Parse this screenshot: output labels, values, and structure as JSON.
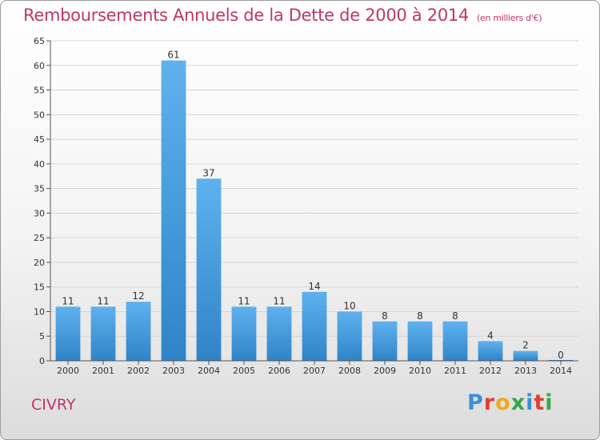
{
  "title": "Remboursements Annuels de la Dette de 2000 à 2014",
  "subtitle": "(en milliers d'€)",
  "town": "CIVRY",
  "logo": {
    "text": "Proxiti",
    "letters": [
      {
        "ch": "P",
        "color": "#3a8fd8"
      },
      {
        "ch": "r",
        "color": "#e0402f"
      },
      {
        "ch": "o",
        "color": "#f2a81d"
      },
      {
        "ch": "x",
        "color": "#3aa648"
      },
      {
        "ch": "i",
        "color": "#3a8fd8"
      },
      {
        "ch": "t",
        "color": "#e0402f"
      },
      {
        "ch": "i",
        "color": "#3aa648"
      }
    ]
  },
  "colors": {
    "bar_light": "#5fb1ee",
    "bar_dark": "#2f84c8",
    "accent": "#c0356c",
    "grid": "#d6d6d6"
  },
  "chart_data": {
    "type": "bar",
    "categories": [
      "2000",
      "2001",
      "2002",
      "2003",
      "2004",
      "2005",
      "2006",
      "2007",
      "2008",
      "2009",
      "2010",
      "2011",
      "2012",
      "2013",
      "2014"
    ],
    "values": [
      11,
      11,
      12,
      61,
      37,
      11,
      11,
      14,
      10,
      8,
      8,
      8,
      4,
      2,
      0
    ],
    "data_labels": [
      "11",
      "11",
      "12",
      "61",
      "37",
      "11",
      "11",
      "14",
      "10",
      "8",
      "8",
      "8",
      "4",
      "2",
      "0"
    ],
    "title": "Remboursements Annuels de la Dette de 2000 à 2014",
    "xlabel": "",
    "ylabel": "",
    "ylim": [
      0,
      65
    ],
    "yticks": [
      0,
      5,
      10,
      15,
      20,
      25,
      30,
      35,
      40,
      45,
      50,
      55,
      60,
      65
    ],
    "grid": true
  }
}
